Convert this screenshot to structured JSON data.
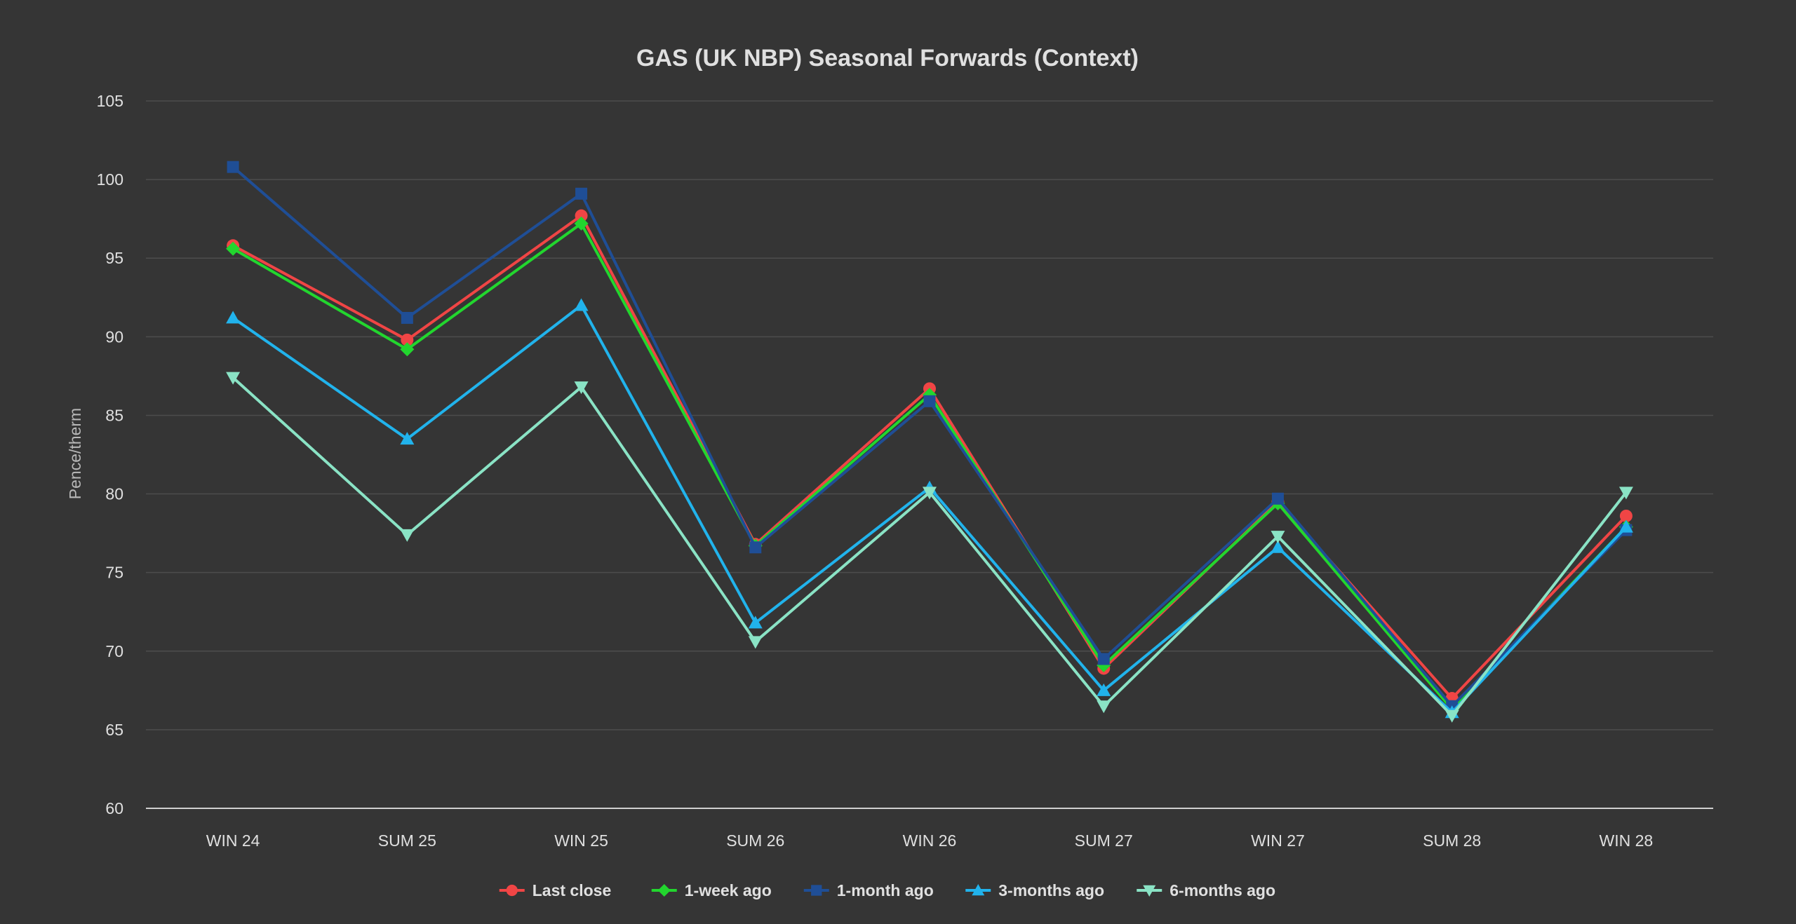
{
  "chart_data": {
    "type": "line",
    "title": "GAS (UK NBP) Seasonal Forwards (Context)",
    "xlabel": "",
    "ylabel": "Pence/therm",
    "ylim": [
      60,
      105
    ],
    "yticks": [
      60,
      65,
      70,
      75,
      80,
      85,
      90,
      95,
      100,
      105
    ],
    "grid": true,
    "legend_position": "bottom",
    "categories": [
      "WIN 24",
      "SUM 25",
      "WIN 25",
      "SUM 26",
      "WIN 26",
      "SUM 27",
      "WIN 27",
      "SUM 28",
      "WIN 28"
    ],
    "series": [
      {
        "name": "Last close",
        "color": "#f04545",
        "marker": "circle",
        "values": [
          95.8,
          89.8,
          97.7,
          76.8,
          86.7,
          68.9,
          79.5,
          67.0,
          78.6
        ]
      },
      {
        "name": "1-week ago",
        "color": "#22d62e",
        "marker": "diamond",
        "values": [
          95.6,
          89.2,
          97.2,
          76.7,
          86.3,
          69.1,
          79.4,
          66.3,
          77.9
        ]
      },
      {
        "name": "1-month ago",
        "color": "#1f4e96",
        "marker": "square",
        "values": [
          100.8,
          91.2,
          99.1,
          76.6,
          85.9,
          69.5,
          79.7,
          66.5,
          77.7
        ]
      },
      {
        "name": "3-months ago",
        "color": "#21b3ec",
        "marker": "triangle-up",
        "values": [
          91.2,
          83.5,
          92.0,
          71.8,
          80.4,
          67.5,
          76.6,
          66.1,
          77.9
        ]
      },
      {
        "name": "6-months ago",
        "color": "#8ae3c5",
        "marker": "triangle-down",
        "values": [
          87.4,
          77.4,
          86.8,
          70.6,
          80.1,
          66.5,
          77.3,
          65.9,
          80.1
        ]
      }
    ]
  }
}
